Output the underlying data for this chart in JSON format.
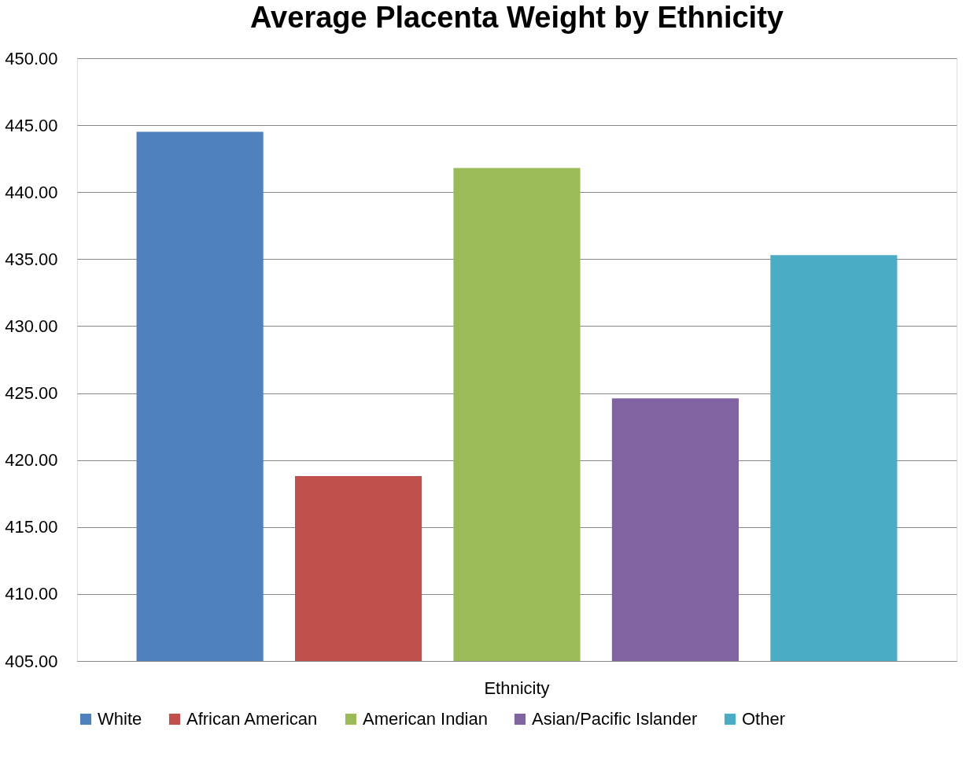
{
  "chart_data": {
    "type": "bar",
    "title": "Average Placenta Weight by Ethnicity",
    "categories": [
      "Ethnicity"
    ],
    "series": [
      {
        "name": "White",
        "color": "#4f81bd",
        "values": [
          444.5
        ]
      },
      {
        "name": "African American",
        "color": "#c0504d",
        "values": [
          418.8
        ]
      },
      {
        "name": "American Indian",
        "color": "#9bbb59",
        "values": [
          441.8
        ]
      },
      {
        "name": "Asian/Pacific Islander",
        "color": "#8064a2",
        "values": [
          424.6
        ]
      },
      {
        "name": "Other",
        "color": "#4bacc6",
        "values": [
          435.3
        ]
      }
    ],
    "ylim": [
      405,
      450
    ],
    "yticks": [
      {
        "value": 405,
        "label": "405.00"
      },
      {
        "value": 410,
        "label": "410.00"
      },
      {
        "value": 415,
        "label": "415.00"
      },
      {
        "value": 420,
        "label": "420.00"
      },
      {
        "value": 425,
        "label": "425.00"
      },
      {
        "value": 430,
        "label": "430.00"
      },
      {
        "value": 435,
        "label": "435.00"
      },
      {
        "value": 440,
        "label": "440.00"
      },
      {
        "value": 445,
        "label": "445.00"
      },
      {
        "value": 450,
        "label": "450.00"
      }
    ],
    "grid": "y",
    "legend": "bottom"
  }
}
